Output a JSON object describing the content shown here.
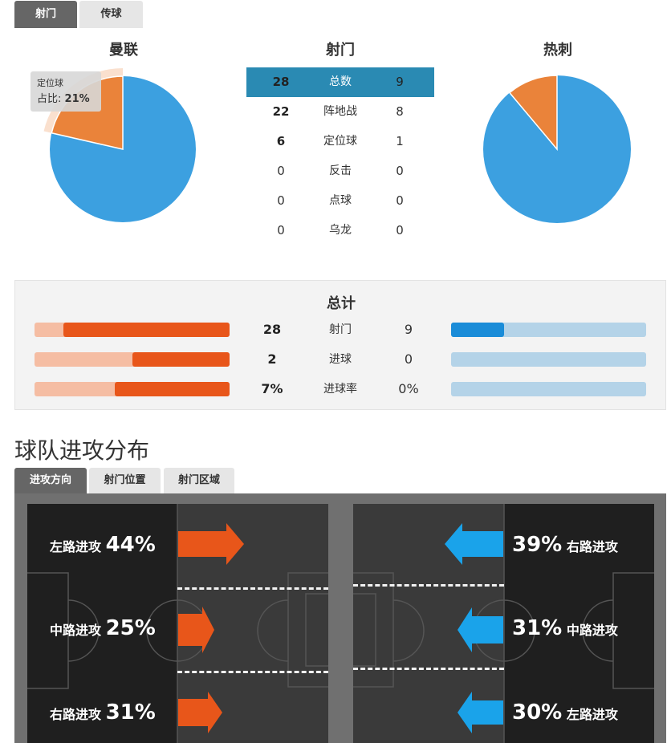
{
  "tabs": {
    "shots": "射门",
    "passes": "传球"
  },
  "home_team": "曼联",
  "away_team": "热刺",
  "shots_title": "射门",
  "tooltip": {
    "name": "定位球",
    "label": "占比:",
    "value": "21%"
  },
  "shot_rows": [
    {
      "home": "28",
      "label": "总数",
      "away": "9"
    },
    {
      "home": "22",
      "label": "阵地战",
      "away": "8"
    },
    {
      "home": "6",
      "label": "定位球",
      "away": "1"
    },
    {
      "home": "0",
      "label": "反击",
      "away": "0"
    },
    {
      "home": "0",
      "label": "点球",
      "away": "0"
    },
    {
      "home": "0",
      "label": "乌龙",
      "away": "0"
    }
  ],
  "pies": {
    "home": {
      "open_play": 22,
      "set_piece": 6
    },
    "away": {
      "open_play": 8,
      "set_piece": 1
    }
  },
  "summary": {
    "title": "总计",
    "rows": [
      {
        "home": "28",
        "label": "射门",
        "away": "9",
        "home_frac": 0.85,
        "away_frac": 0.27
      },
      {
        "home": "2",
        "label": "进球",
        "away": "0",
        "home_frac": 0.5,
        "away_frac": 0.0
      },
      {
        "home": "7%",
        "label": "进球率",
        "away": "0%",
        "home_frac": 0.59,
        "away_frac": 0.0
      }
    ]
  },
  "attack": {
    "heading": "球队进攻分布",
    "tabs": {
      "direction": "进攻方向",
      "position": "射门位置",
      "zone": "射门区域"
    },
    "home": [
      {
        "name": "左路进攻",
        "pct": "44%"
      },
      {
        "name": "中路进攻",
        "pct": "25%"
      },
      {
        "name": "右路进攻",
        "pct": "31%"
      }
    ],
    "away": [
      {
        "name": "右路进攻",
        "pct": "39%"
      },
      {
        "name": "中路进攻",
        "pct": "31%"
      },
      {
        "name": "左路进攻",
        "pct": "30%"
      }
    ]
  },
  "colors": {
    "home": "#e8561a",
    "home_light": "#f5bda3",
    "away": "#1a8cd8",
    "away_light": "#b4d3e8",
    "pie_blue": "#3ca0e0",
    "pie_orange": "#ea833a",
    "arrow_orange": "#e8561a",
    "arrow_blue": "#1aa3ea"
  }
}
